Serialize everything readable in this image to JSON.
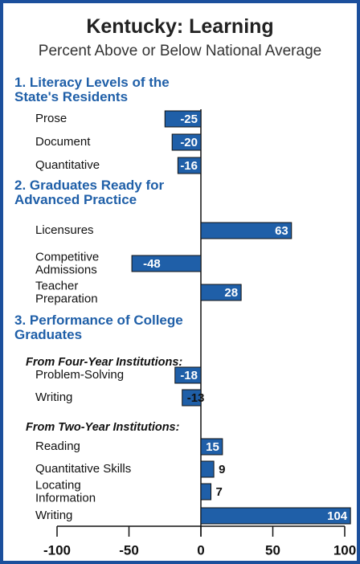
{
  "chart_data": {
    "type": "bar",
    "title": "Kentucky: Learning",
    "subtitle": "Percent Above or Below National Average",
    "color": "#1f5fa8",
    "xlim": [
      -100,
      100
    ],
    "xticks": [
      -100,
      -50,
      0,
      50,
      100
    ],
    "groups": [
      {
        "title": "1. Literacy Levels of the State's Residents",
        "subgroups": [
          {
            "categories": [
              "Prose",
              "Document",
              "Quantitative"
            ],
            "values": [
              -25,
              -20,
              -16
            ]
          }
        ]
      },
      {
        "title": "2. Graduates Ready for Advanced Practice",
        "subgroups": [
          {
            "categories": [
              "Licensures",
              "Competitive Admissions",
              "Teacher Preparation"
            ],
            "values": [
              63,
              -48,
              28
            ]
          }
        ]
      },
      {
        "title": "3. Performance of College Graduates",
        "subgroups": [
          {
            "title": "From Four-Year Institutions:",
            "categories": [
              "Problem-Solving",
              "Writing"
            ],
            "values": [
              -18,
              -13
            ]
          },
          {
            "title": "From Two-Year Institutions:",
            "categories": [
              "Reading",
              "Quantitative Skills",
              "Locating Information",
              "Writing"
            ],
            "values": [
              15,
              9,
              7,
              104
            ]
          }
        ]
      }
    ]
  }
}
